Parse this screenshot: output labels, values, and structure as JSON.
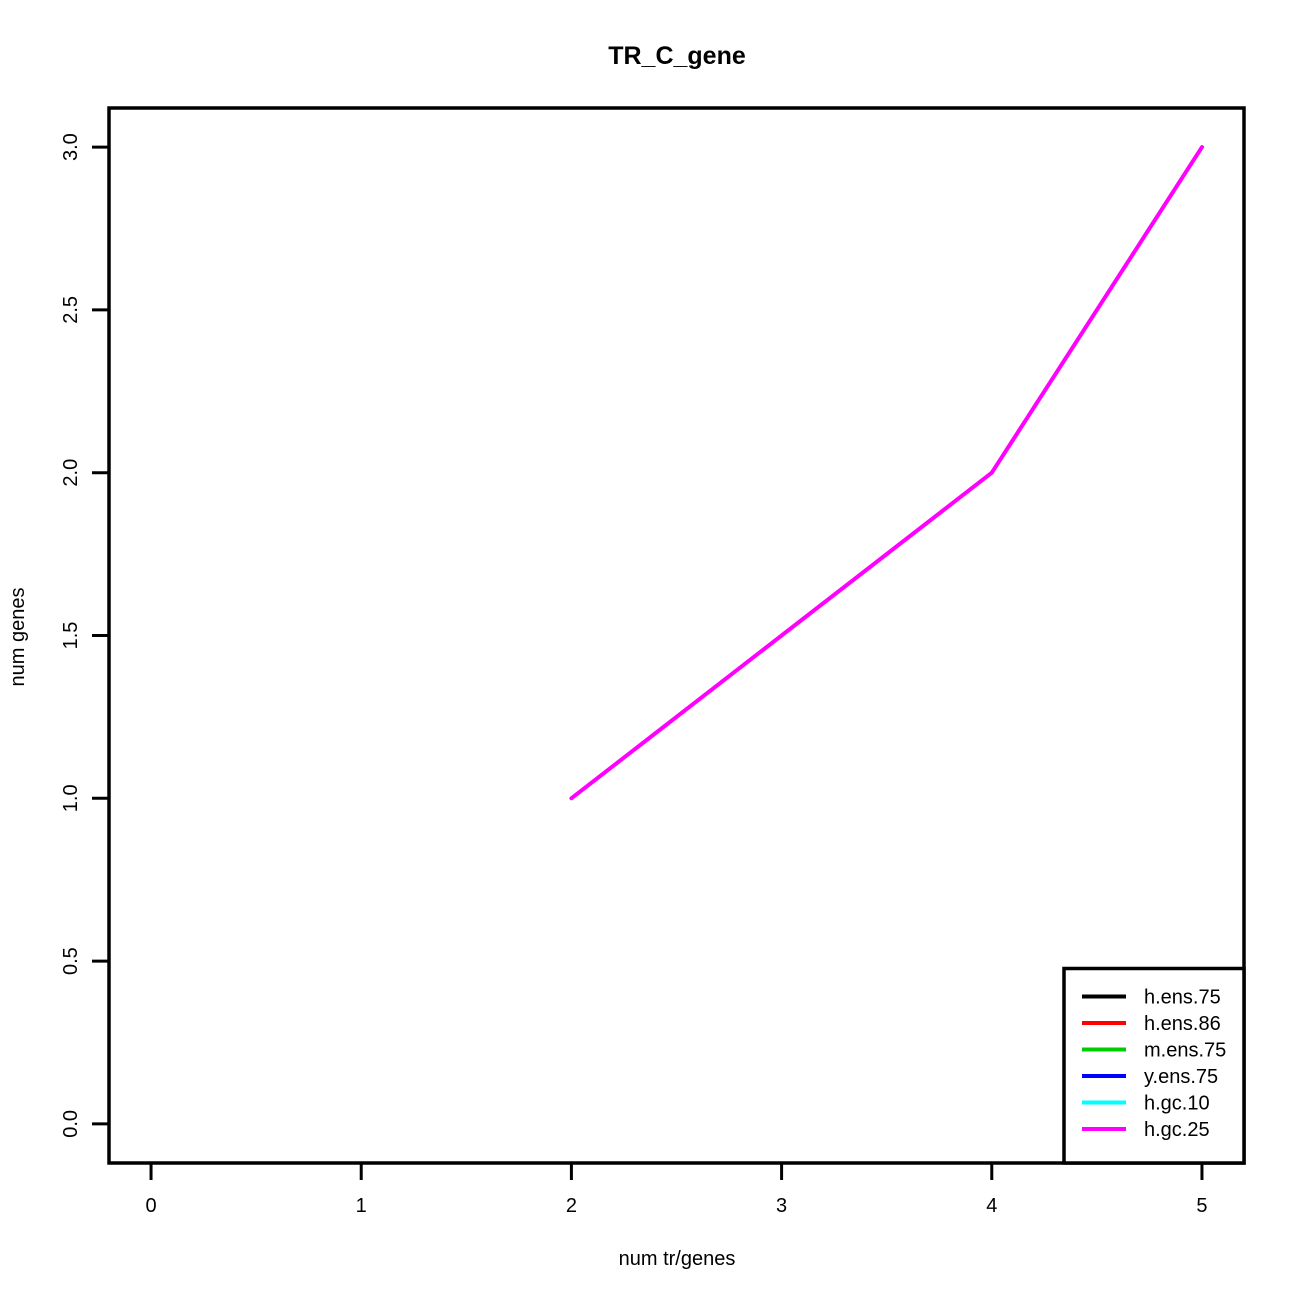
{
  "chart_data": {
    "type": "line",
    "title": "TR_C_gene",
    "xlabel": "num tr/genes",
    "ylabel": "num genes",
    "xlim": [
      -0.2,
      5.2
    ],
    "ylim": [
      -0.12,
      3.12
    ],
    "x_ticks": [
      0,
      1,
      2,
      3,
      4,
      5
    ],
    "x_tick_labels": [
      "0",
      "1",
      "2",
      "3",
      "4",
      "5"
    ],
    "y_ticks": [
      0,
      0.5,
      1,
      1.5,
      2,
      2.5,
      3
    ],
    "y_tick_labels": [
      "0.0",
      "0.5",
      "1.0",
      "1.5",
      "2.0",
      "2.5",
      "3.0"
    ],
    "grid": false,
    "legend_position": "bottom-right",
    "series": [
      {
        "name": "h.ens.75",
        "color": "#000000",
        "x": [],
        "y": []
      },
      {
        "name": "h.ens.86",
        "color": "#ff0000",
        "x": [],
        "y": []
      },
      {
        "name": "m.ens.75",
        "color": "#00cd00",
        "x": [],
        "y": []
      },
      {
        "name": "y.ens.75",
        "color": "#0000ff",
        "x": [],
        "y": []
      },
      {
        "name": "h.gc.10",
        "color": "#00ffff",
        "x": [],
        "y": []
      },
      {
        "name": "h.gc.25",
        "color": "#ff00ff",
        "x": [
          2,
          3,
          4,
          5
        ],
        "y": [
          1,
          1.5,
          2,
          3
        ]
      }
    ]
  }
}
